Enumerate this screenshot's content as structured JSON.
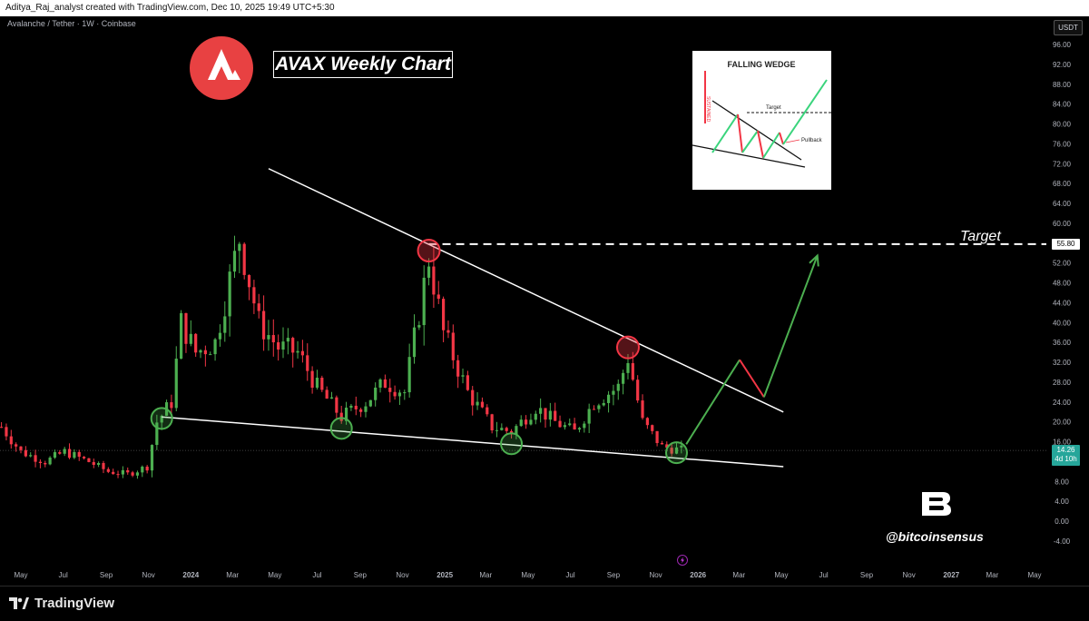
{
  "header": {
    "attribution": "Aditya_Raj_analyst created with TradingView.com, Dec 10, 2025 19:49 UTC+5:30",
    "symbol": "Avalanche / Tether · 1W · Coinbase",
    "currency": "USDT"
  },
  "overlay": {
    "title": "AVAX Weekly Chart",
    "target_label": "Target",
    "brand_handle": "@bitcoinsensus",
    "inset_title": "FALLING WEDGE",
    "inset_target": "Target",
    "inset_pullback": "Pullback",
    "inset_side_label": "SUSTAINED"
  },
  "footer": {
    "logo_text": "TradingView"
  },
  "colors": {
    "up": "#4caf50",
    "down": "#f23645",
    "background": "#000000",
    "trendline": "#ffffff",
    "projection_up": "#4caf50",
    "projection_down": "#f23645"
  },
  "price_tags": {
    "target": "55.80",
    "last": "14.26",
    "countdown": "4d 10h"
  },
  "chart_data": {
    "type": "candlestick",
    "title": "AVAX Weekly Chart",
    "interval": "1W",
    "pair": "Avalanche / Tether",
    "exchange": "Coinbase",
    "y_axis_ticks": [
      "-4.00",
      "0.00",
      "4.00",
      "8.00",
      "12.00",
      "16.00",
      "20.00",
      "24.00",
      "28.00",
      "32.00",
      "36.00",
      "40.00",
      "44.00",
      "48.00",
      "52.00",
      "56.00",
      "60.00",
      "64.00",
      "68.00",
      "72.00",
      "76.00",
      "80.00",
      "84.00",
      "88.00",
      "92.00",
      "96.00"
    ],
    "ylim": [
      -4,
      98
    ],
    "x_axis_ticks": [
      "May",
      "Jul",
      "Sep",
      "Nov",
      "2024",
      "Mar",
      "May",
      "Jul",
      "Sep",
      "Nov",
      "2025",
      "Mar",
      "May",
      "Jul",
      "Sep",
      "Nov",
      "2026",
      "Mar",
      "May",
      "Jul",
      "Sep",
      "Nov",
      "2027",
      "Mar",
      "May"
    ],
    "x_tick_dates": [
      "2023-05-01",
      "2023-07-01",
      "2023-09-01",
      "2023-11-01",
      "2024-01-01",
      "2024-03-01",
      "2024-05-01",
      "2024-07-01",
      "2024-09-01",
      "2024-11-01",
      "2025-01-01",
      "2025-03-01",
      "2025-05-01",
      "2025-07-01",
      "2025-09-01",
      "2025-11-01",
      "2026-01-01",
      "2026-03-01",
      "2026-05-01",
      "2026-07-01",
      "2026-09-01",
      "2026-11-01",
      "2027-01-01",
      "2027-03-01",
      "2027-05-01"
    ],
    "candle_keyframes": [
      [
        "2023-04-03",
        19
      ],
      [
        "2023-05-01",
        14
      ],
      [
        "2023-06-05",
        12
      ],
      [
        "2023-07-03",
        14
      ],
      [
        "2023-08-07",
        12
      ],
      [
        "2023-09-04",
        10
      ],
      [
        "2023-10-02",
        9.5
      ],
      [
        "2023-10-30",
        11
      ],
      [
        "2023-11-13",
        20
      ],
      [
        "2023-12-04",
        24
      ],
      [
        "2023-12-18",
        40
      ],
      [
        "2024-01-08",
        34
      ],
      [
        "2024-02-05",
        36
      ],
      [
        "2024-03-11",
        57
      ],
      [
        "2024-04-08",
        40
      ],
      [
        "2024-05-06",
        35
      ],
      [
        "2024-06-03",
        34
      ],
      [
        "2024-07-01",
        27
      ],
      [
        "2024-08-05",
        21
      ],
      [
        "2024-09-09",
        24
      ],
      [
        "2024-10-07",
        28
      ],
      [
        "2024-11-04",
        26
      ],
      [
        "2024-11-25",
        42
      ],
      [
        "2024-12-09",
        53
      ],
      [
        "2024-12-30",
        38
      ],
      [
        "2025-02-03",
        26
      ],
      [
        "2025-03-10",
        19
      ],
      [
        "2025-04-07",
        18
      ],
      [
        "2025-05-12",
        23
      ],
      [
        "2025-06-09",
        20
      ],
      [
        "2025-07-07",
        18
      ],
      [
        "2025-08-04",
        24
      ],
      [
        "2025-09-08",
        27
      ],
      [
        "2025-09-22",
        33
      ],
      [
        "2025-10-13",
        20
      ],
      [
        "2025-11-10",
        15
      ],
      [
        "2025-12-08",
        14.26
      ]
    ],
    "trendlines": [
      {
        "name": "upper-resistance",
        "from": [
          "2024-04-22",
          71
        ],
        "to": [
          "2026-05-04",
          22
        ]
      },
      {
        "name": "lower-support",
        "from": [
          "2023-11-20",
          21
        ],
        "to": [
          "2026-05-04",
          11
        ]
      }
    ],
    "target_level": 55.8,
    "projection": [
      [
        "2025-12-15",
        15.5
      ],
      [
        "2026-03-02",
        32.5
      ],
      [
        "2026-04-06",
        25
      ],
      [
        "2026-06-22",
        53.5
      ]
    ],
    "touch_points": [
      {
        "type": "resistance",
        "date": "2024-12-09",
        "value": 54.5
      },
      {
        "type": "resistance",
        "date": "2025-09-22",
        "value": 35
      },
      {
        "type": "support",
        "date": "2023-11-20",
        "value": 20.7
      },
      {
        "type": "support",
        "date": "2024-08-05",
        "value": 18.7
      },
      {
        "type": "support",
        "date": "2025-04-07",
        "value": 15.6
      },
      {
        "type": "support",
        "date": "2025-12-01",
        "value": 13.8
      }
    ],
    "last_price": 14.26
  }
}
